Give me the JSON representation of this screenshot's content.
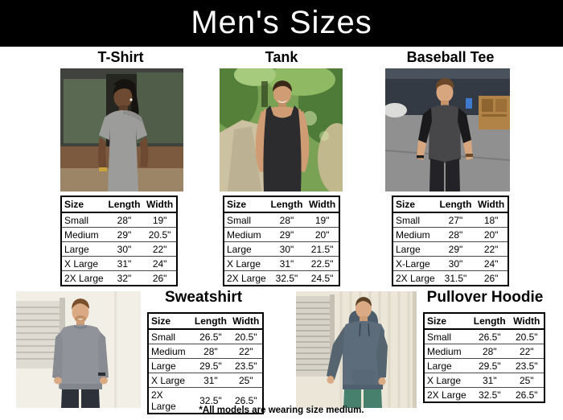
{
  "banner": {
    "title": "Men's Sizes"
  },
  "colors": {
    "banner_bg": "#000000",
    "banner_text": "#ffffff",
    "table_border": "#000000"
  },
  "tables": {
    "headers": [
      "Size",
      "Length",
      "Width"
    ]
  },
  "products": [
    {
      "title": "T-Shirt",
      "photo": "man-in-gray-t-shirt-photo",
      "rows": [
        [
          "Small",
          "28\"",
          "19\""
        ],
        [
          "Medium",
          "29\"",
          "20.5\""
        ],
        [
          "Large",
          "30\"",
          "22\""
        ],
        [
          "X Large",
          "31\"",
          "24\""
        ],
        [
          "2X Large",
          "32\"",
          "26\""
        ]
      ]
    },
    {
      "title": "Tank",
      "photo": "man-in-black-tank-photo",
      "rows": [
        [
          "Small",
          "28\"",
          "19\""
        ],
        [
          "Medium",
          "29\"",
          "20\""
        ],
        [
          "Large",
          "30\"",
          "21.5\""
        ],
        [
          "X Large",
          "31\"",
          "22.5\""
        ],
        [
          "2X Large",
          "32.5\"",
          "24.5\""
        ]
      ]
    },
    {
      "title": "Baseball Tee",
      "photo": "man-in-baseball-tee-photo",
      "rows": [
        [
          "Small",
          "27\"",
          "18\""
        ],
        [
          "Medium",
          "28\"",
          "20\""
        ],
        [
          "Large",
          "29\"",
          "22\""
        ],
        [
          "X-Large",
          "30\"",
          "24\""
        ],
        [
          "2X Large",
          "31.5\"",
          "26\""
        ]
      ]
    },
    {
      "title": "Sweatshirt",
      "photo": "man-in-gray-sweatshirt-photo",
      "rows": [
        [
          "Small",
          "26.5\"",
          "20.5\""
        ],
        [
          "Medium",
          "28\"",
          "22\""
        ],
        [
          "Large",
          "29.5\"",
          "23.5\""
        ],
        [
          "X Large",
          "31\"",
          "25\""
        ],
        [
          "2X Large",
          "32.5\"",
          "26.5\""
        ]
      ]
    },
    {
      "title": "Pullover Hoodie",
      "photo": "man-in-pullover-hoodie-photo",
      "rows": [
        [
          "Small",
          "26.5\"",
          "20.5\""
        ],
        [
          "Medium",
          "28\"",
          "22\""
        ],
        [
          "Large",
          "29.5\"",
          "23.5\""
        ],
        [
          "X Large",
          "31\"",
          "25\""
        ],
        [
          "2X Large",
          "32.5\"",
          "26.5\""
        ]
      ]
    }
  ],
  "footer": {
    "note": "*All models are wearing size medium."
  }
}
